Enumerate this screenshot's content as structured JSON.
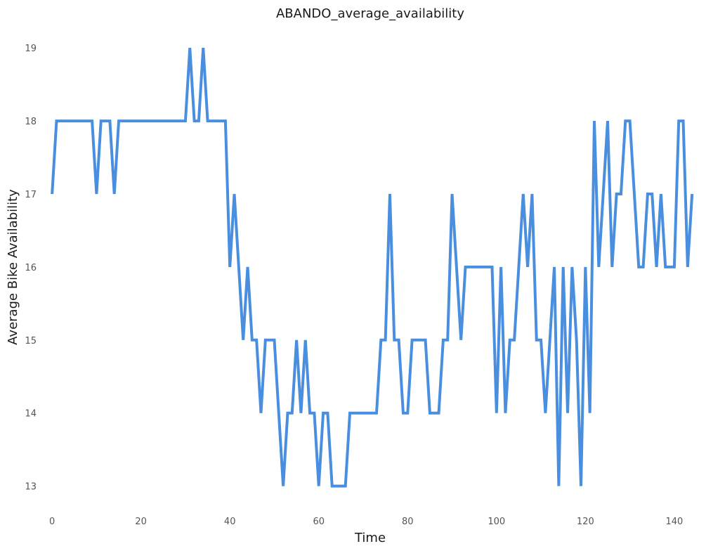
{
  "chart_data": {
    "type": "line",
    "title": "ABANDO_average_availability",
    "xlabel": "Time",
    "ylabel": "Average Bike Availability",
    "xlim": [
      -3.5,
      146.5
    ],
    "ylim": [
      12.65,
      19.3
    ],
    "xticks": [
      0,
      20,
      40,
      60,
      80,
      100,
      120,
      140
    ],
    "yticks": [
      13,
      14,
      15,
      16,
      17,
      18,
      19
    ],
    "grid": false,
    "legend": "none",
    "series_color": "#4a8fdf",
    "series": [
      {
        "values": [
          17,
          18,
          18,
          18,
          18,
          18,
          18,
          18,
          18,
          18,
          17,
          18,
          18,
          18,
          17,
          18,
          18,
          18,
          18,
          18,
          18,
          18,
          18,
          18,
          18,
          18,
          18,
          18,
          18,
          18,
          18,
          19,
          18,
          18,
          19,
          18,
          18,
          18,
          18,
          18,
          16,
          17,
          16,
          15,
          16,
          15,
          15,
          14,
          15,
          15,
          15,
          14,
          13,
          14,
          14,
          15,
          14,
          15,
          14,
          14,
          13,
          14,
          14,
          13,
          13,
          13,
          13,
          14,
          14,
          14,
          14,
          14,
          14,
          14,
          15,
          15,
          17,
          15,
          15,
          14,
          14,
          15,
          15,
          15,
          15,
          14,
          14,
          14,
          15,
          15,
          17,
          16,
          15,
          16,
          16,
          16,
          16,
          16,
          16,
          16,
          14,
          16,
          14,
          15,
          15,
          16,
          17,
          16,
          17,
          15,
          15,
          14,
          15,
          16,
          13,
          16,
          14,
          16,
          15,
          13,
          16,
          14,
          18,
          16,
          17,
          18,
          16,
          17,
          17,
          18,
          18,
          17,
          16,
          16,
          17,
          17,
          16,
          17,
          16,
          16,
          16,
          18,
          18,
          16,
          17
        ]
      }
    ]
  }
}
